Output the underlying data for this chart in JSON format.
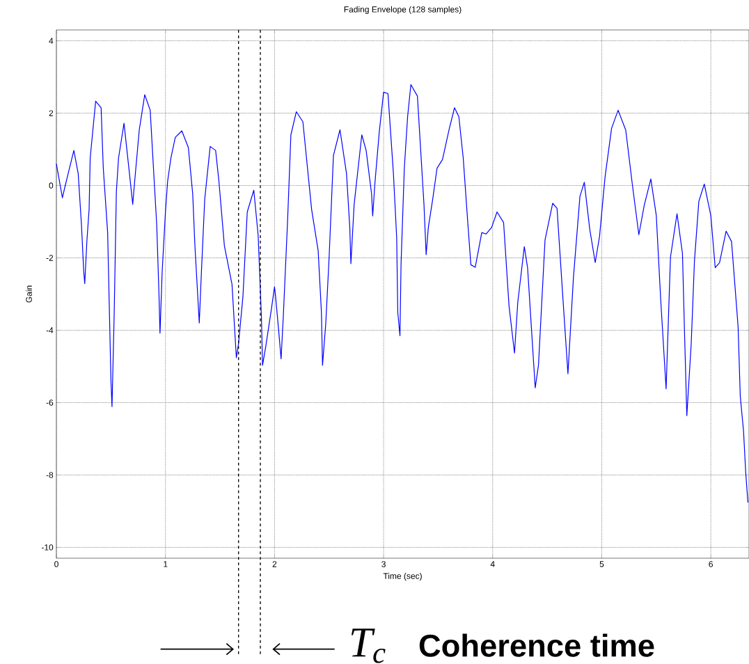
{
  "chart_data": {
    "type": "line",
    "title": "Fading Envelope (128 samples)",
    "xlabel": "Time (sec)",
    "ylabel": "Gain",
    "annotations": [
      "T$_{c}$",
      "Coherence time"
    ],
    "x": [
      0,
      0.055,
      0.083,
      0.16,
      0.2,
      0.23,
      0.25,
      0.26,
      0.28,
      0.3,
      0.31,
      0.36,
      0.41,
      0.43,
      0.47,
      0.49,
      0.5,
      0.51,
      0.53,
      0.55,
      0.57,
      0.62,
      0.67,
      0.7,
      0.72,
      0.76,
      0.81,
      0.86,
      0.89,
      0.92,
      0.94,
      0.95,
      0.97,
      1.0,
      1.02,
      1.05,
      1.09,
      1.15,
      1.21,
      1.25,
      1.27,
      1.29,
      1.31,
      1.33,
      1.36,
      1.41,
      1.46,
      1.49,
      1.54,
      1.61,
      1.65,
      1.67,
      1.71,
      1.75,
      1.81,
      1.85,
      1.88,
      1.89,
      1.92,
      1.97,
      2.0,
      2.01,
      2.04,
      2.06,
      2.08,
      2.12,
      2.15,
      2.2,
      2.26,
      2.34,
      2.4,
      2.43,
      2.44,
      2.47,
      2.5,
      2.54,
      2.6,
      2.66,
      2.69,
      2.7,
      2.73,
      2.8,
      2.84,
      2.89,
      2.9,
      2.92,
      2.96,
      3.0,
      3.04,
      3.09,
      3.12,
      3.13,
      3.15,
      3.16,
      3.19,
      3.22,
      3.25,
      3.31,
      3.34,
      3.37,
      3.39,
      3.41,
      3.45,
      3.49,
      3.54,
      3.6,
      3.65,
      3.69,
      3.73,
      3.77,
      3.8,
      3.84,
      3.9,
      3.94,
      3.99,
      4.04,
      4.1,
      4.15,
      4.2,
      4.23,
      4.29,
      4.32,
      4.39,
      4.42,
      4.48,
      4.55,
      4.59,
      4.64,
      4.69,
      4.74,
      4.8,
      4.84,
      4.89,
      4.94,
      4.98,
      5.03,
      5.09,
      5.15,
      5.22,
      5.28,
      5.34,
      5.39,
      5.45,
      5.5,
      5.54,
      5.59,
      5.63,
      5.69,
      5.74,
      5.76,
      5.78,
      5.82,
      5.85,
      5.89,
      5.94,
      6.0,
      6.04,
      6.08,
      6.14,
      6.19,
      6.25,
      6.27,
      6.3,
      6.32,
      6.34
    ],
    "series": [
      {
        "color": "#0000ff",
        "values": [
          0.6,
          -0.34,
          0.02,
          0.97,
          0.33,
          -1.09,
          -2.34,
          -2.71,
          -1.52,
          -0.66,
          0.76,
          2.33,
          2.15,
          0.48,
          -1.3,
          -4.01,
          -5.37,
          -6.11,
          -3.55,
          -0.17,
          0.76,
          1.72,
          0.33,
          -0.52,
          0.19,
          1.54,
          2.51,
          2.08,
          0.48,
          -1.09,
          -2.94,
          -4.08,
          -2.37,
          -0.73,
          0.12,
          0.76,
          1.33,
          1.51,
          1.05,
          -0.24,
          -1.66,
          -2.73,
          -3.8,
          -2.37,
          -0.38,
          1.08,
          0.97,
          0.12,
          -1.66,
          -2.73,
          -4.76,
          -4.37,
          -3.08,
          -0.73,
          -0.13,
          -1.38,
          -3.65,
          -4.97,
          -4.44,
          -3.44,
          -2.8,
          -3.08,
          -4.08,
          -4.79,
          -3.65,
          -0.95,
          1.4,
          2.04,
          1.76,
          -0.66,
          -1.8,
          -3.51,
          -4.97,
          -3.8,
          -2.02,
          0.83,
          1.54,
          0.33,
          -1.16,
          -2.16,
          -0.52,
          1.4,
          0.97,
          -0.24,
          -0.84,
          0.05,
          1.47,
          2.58,
          2.54,
          0.33,
          -1.45,
          -3.51,
          -4.15,
          -2.16,
          0.48,
          1.9,
          2.79,
          2.47,
          0.97,
          -0.52,
          -1.91,
          -1.16,
          -0.38,
          0.48,
          0.72,
          1.54,
          2.15,
          1.9,
          0.76,
          -0.95,
          -2.19,
          -2.26,
          -1.3,
          -1.34,
          -1.16,
          -0.73,
          -1.02,
          -3.33,
          -4.63,
          -3.23,
          -1.69,
          -2.27,
          -5.59,
          -4.96,
          -1.5,
          -0.49,
          -0.63,
          -2.94,
          -5.2,
          -2.56,
          -0.3,
          0.09,
          -1.21,
          -2.13,
          -1.4,
          0.23,
          1.58,
          2.08,
          1.53,
          0.04,
          -1.36,
          -0.54,
          0.18,
          -0.83,
          -3.13,
          -5.62,
          -1.98,
          -0.78,
          -1.88,
          -4.19,
          -6.36,
          -4.38,
          -2.08,
          -0.44,
          0.04,
          -0.83,
          -2.27,
          -2.13,
          -1.26,
          -1.55,
          -3.9,
          -5.83,
          -6.79,
          -7.94,
          -8.76
        ]
      }
    ],
    "xlim": [
      0,
      6.35
    ],
    "ylim": [
      -10.3,
      4.3
    ],
    "xticks": [
      0,
      1,
      2,
      3,
      4,
      5,
      6
    ],
    "yticks": [
      -10,
      -8,
      -6,
      -4,
      -2,
      0,
      2,
      4
    ],
    "grid": true,
    "marker": "none",
    "line_style": "solid",
    "ref_lines": [
      {
        "axis": "x",
        "value": 1.67,
        "color": "#000000",
        "line_style": "dashed"
      },
      {
        "axis": "x",
        "value": 1.87,
        "color": "#000000",
        "line_style": "dashed"
      }
    ]
  }
}
